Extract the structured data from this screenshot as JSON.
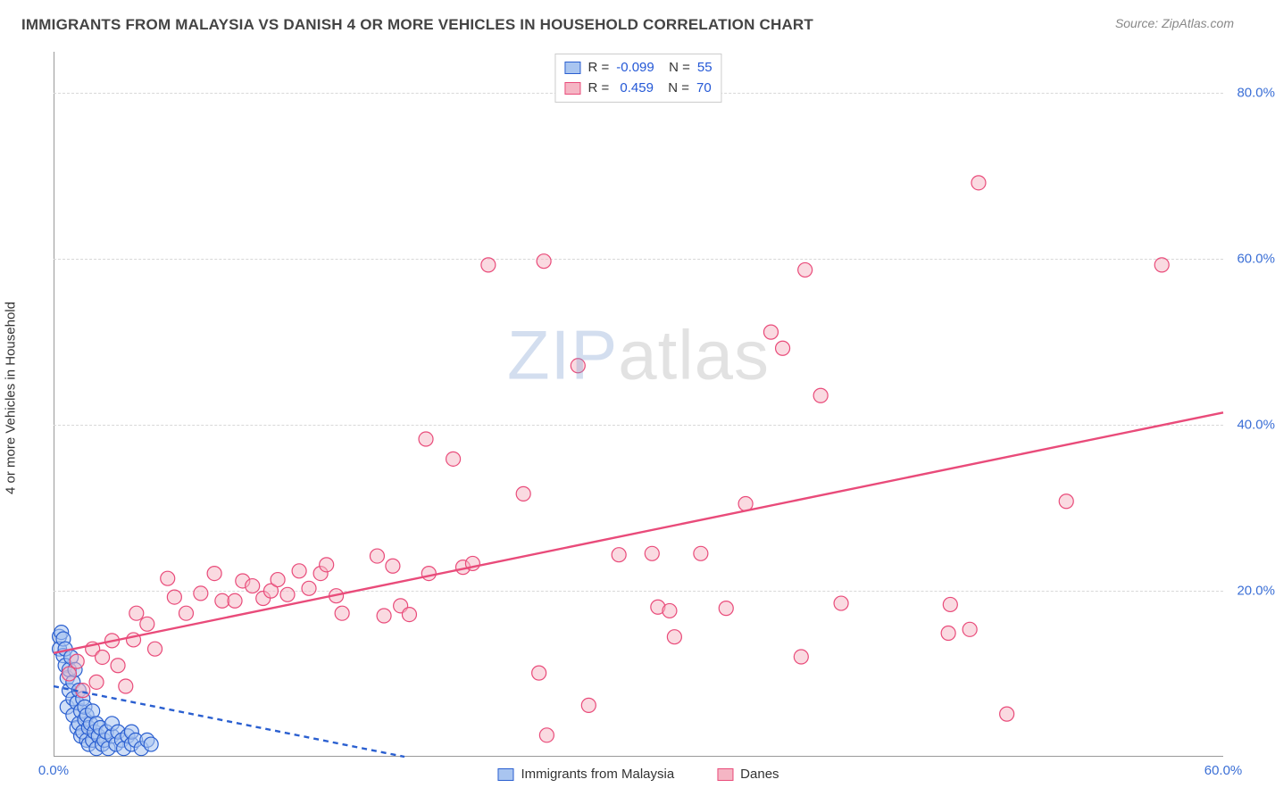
{
  "header": {
    "title": "IMMIGRANTS FROM MALAYSIA VS DANISH 4 OR MORE VEHICLES IN HOUSEHOLD CORRELATION CHART",
    "source": "Source: ZipAtlas.com"
  },
  "watermark": {
    "part1": "ZIP",
    "part2": "atlas"
  },
  "chart": {
    "type": "scatter",
    "ylabel": "4 or more Vehicles in Household",
    "xlim": [
      0,
      60
    ],
    "ylim": [
      0,
      85
    ],
    "xticks": [
      0,
      60
    ],
    "xtick_labels": [
      "0.0%",
      "60.0%"
    ],
    "yticks": [
      20,
      40,
      60,
      80
    ],
    "ytick_labels": [
      "20.0%",
      "40.0%",
      "60.0%",
      "80.0%"
    ],
    "grid_color": "#d8d8d8",
    "background_color": "#ffffff",
    "marker_radius": 8,
    "marker_stroke_width": 1.2,
    "trend_line_width": 2.4,
    "series": [
      {
        "name": "Immigrants from Malaysia",
        "legend_label": "Immigrants from Malaysia",
        "R": "-0.099",
        "N": "55",
        "fill": "#a9c5f0",
        "fill_opacity": 0.55,
        "stroke": "#2a5fd0",
        "trend": {
          "x1": 0,
          "y1": 8.5,
          "x2": 18,
          "y2": 0,
          "dash": "6 5"
        },
        "points": [
          [
            0.3,
            14.5
          ],
          [
            0.3,
            13.0
          ],
          [
            0.4,
            15.0
          ],
          [
            0.5,
            12.2
          ],
          [
            0.5,
            14.2
          ],
          [
            0.6,
            13.0
          ],
          [
            0.6,
            11.0
          ],
          [
            0.7,
            9.5
          ],
          [
            0.7,
            6.0
          ],
          [
            0.8,
            10.5
          ],
          [
            0.8,
            8.0
          ],
          [
            0.9,
            12.0
          ],
          [
            1.0,
            7.0
          ],
          [
            1.0,
            5.0
          ],
          [
            1.0,
            9.0
          ],
          [
            1.1,
            10.5
          ],
          [
            1.2,
            3.5
          ],
          [
            1.2,
            6.5
          ],
          [
            1.3,
            8.0
          ],
          [
            1.3,
            4.0
          ],
          [
            1.4,
            5.5
          ],
          [
            1.4,
            2.5
          ],
          [
            1.5,
            7.0
          ],
          [
            1.5,
            3.0
          ],
          [
            1.6,
            4.5
          ],
          [
            1.6,
            6.0
          ],
          [
            1.7,
            2.0
          ],
          [
            1.7,
            5.0
          ],
          [
            1.8,
            3.5
          ],
          [
            1.8,
            1.5
          ],
          [
            1.9,
            4.0
          ],
          [
            2.0,
            2.0
          ],
          [
            2.0,
            5.5
          ],
          [
            2.1,
            3.0
          ],
          [
            2.2,
            1.0
          ],
          [
            2.2,
            4.0
          ],
          [
            2.3,
            2.5
          ],
          [
            2.4,
            3.5
          ],
          [
            2.5,
            1.5
          ],
          [
            2.6,
            2.0
          ],
          [
            2.7,
            3.0
          ],
          [
            2.8,
            1.0
          ],
          [
            3.0,
            2.5
          ],
          [
            3.0,
            4.0
          ],
          [
            3.2,
            1.5
          ],
          [
            3.3,
            3.0
          ],
          [
            3.5,
            2.0
          ],
          [
            3.6,
            1.0
          ],
          [
            3.8,
            2.5
          ],
          [
            4.0,
            1.5
          ],
          [
            4.0,
            3.0
          ],
          [
            4.2,
            2.0
          ],
          [
            4.5,
            1.0
          ],
          [
            4.8,
            2.0
          ],
          [
            5.0,
            1.5
          ]
        ]
      },
      {
        "name": "Danes",
        "legend_label": "Danes",
        "R": "0.459",
        "N": "70",
        "fill": "#f5b5c4",
        "fill_opacity": 0.5,
        "stroke": "#e94b7a",
        "trend": {
          "x1": 0,
          "y1": 12.5,
          "x2": 60,
          "y2": 41.5,
          "dash": null
        },
        "points": [
          [
            0.8,
            10.0
          ],
          [
            1.2,
            11.5
          ],
          [
            1.5,
            8.0
          ],
          [
            2.0,
            13.0
          ],
          [
            2.2,
            9.0
          ],
          [
            2.5,
            12.0
          ],
          [
            3.0,
            14.0
          ],
          [
            3.3,
            11.0
          ],
          [
            3.7,
            8.5
          ],
          [
            4.1,
            14.1
          ],
          [
            4.25,
            17.3
          ],
          [
            4.8,
            16.0
          ],
          [
            5.2,
            13.0
          ],
          [
            5.85,
            21.5
          ],
          [
            6.2,
            19.25
          ],
          [
            6.8,
            17.3
          ],
          [
            7.55,
            19.7
          ],
          [
            8.25,
            22.1
          ],
          [
            8.65,
            18.8
          ],
          [
            9.3,
            18.8
          ],
          [
            9.7,
            21.2
          ],
          [
            10.2,
            20.6
          ],
          [
            10.75,
            19.1
          ],
          [
            11.15,
            20.0
          ],
          [
            11.5,
            21.35
          ],
          [
            12.0,
            19.55
          ],
          [
            12.6,
            22.4
          ],
          [
            13.1,
            20.3
          ],
          [
            13.7,
            22.1
          ],
          [
            14.0,
            23.15
          ],
          [
            14.5,
            19.4
          ],
          [
            14.8,
            17.3
          ],
          [
            16.6,
            24.2
          ],
          [
            16.95,
            17.0
          ],
          [
            17.4,
            23.0
          ],
          [
            17.8,
            18.2
          ],
          [
            18.25,
            17.15
          ],
          [
            19.1,
            38.3
          ],
          [
            19.25,
            22.1
          ],
          [
            20.5,
            35.9
          ],
          [
            21.0,
            22.85
          ],
          [
            21.5,
            23.3
          ],
          [
            22.3,
            59.3
          ],
          [
            24.1,
            31.7
          ],
          [
            24.9,
            10.1
          ],
          [
            25.15,
            59.75
          ],
          [
            25.3,
            2.6
          ],
          [
            26.9,
            47.15
          ],
          [
            27.45,
            6.2
          ],
          [
            29.0,
            24.35
          ],
          [
            30.7,
            24.5
          ],
          [
            31.0,
            18.05
          ],
          [
            31.6,
            17.6
          ],
          [
            31.85,
            14.45
          ],
          [
            33.2,
            24.5
          ],
          [
            34.5,
            17.9
          ],
          [
            35.5,
            30.5
          ],
          [
            36.8,
            51.2
          ],
          [
            37.4,
            49.25
          ],
          [
            38.35,
            12.05
          ],
          [
            38.55,
            58.7
          ],
          [
            39.35,
            43.55
          ],
          [
            40.4,
            18.5
          ],
          [
            45.9,
            14.9
          ],
          [
            46.0,
            18.35
          ],
          [
            47.0,
            15.35
          ],
          [
            47.45,
            69.2
          ],
          [
            48.9,
            5.15
          ],
          [
            51.95,
            30.8
          ],
          [
            56.85,
            59.3
          ]
        ]
      }
    ],
    "legend_bottom": [
      {
        "label": "Immigrants from Malaysia",
        "fill": "#a9c5f0",
        "stroke": "#2a5fd0"
      },
      {
        "label": "Danes",
        "fill": "#f5b5c4",
        "stroke": "#e94b7a"
      }
    ]
  }
}
